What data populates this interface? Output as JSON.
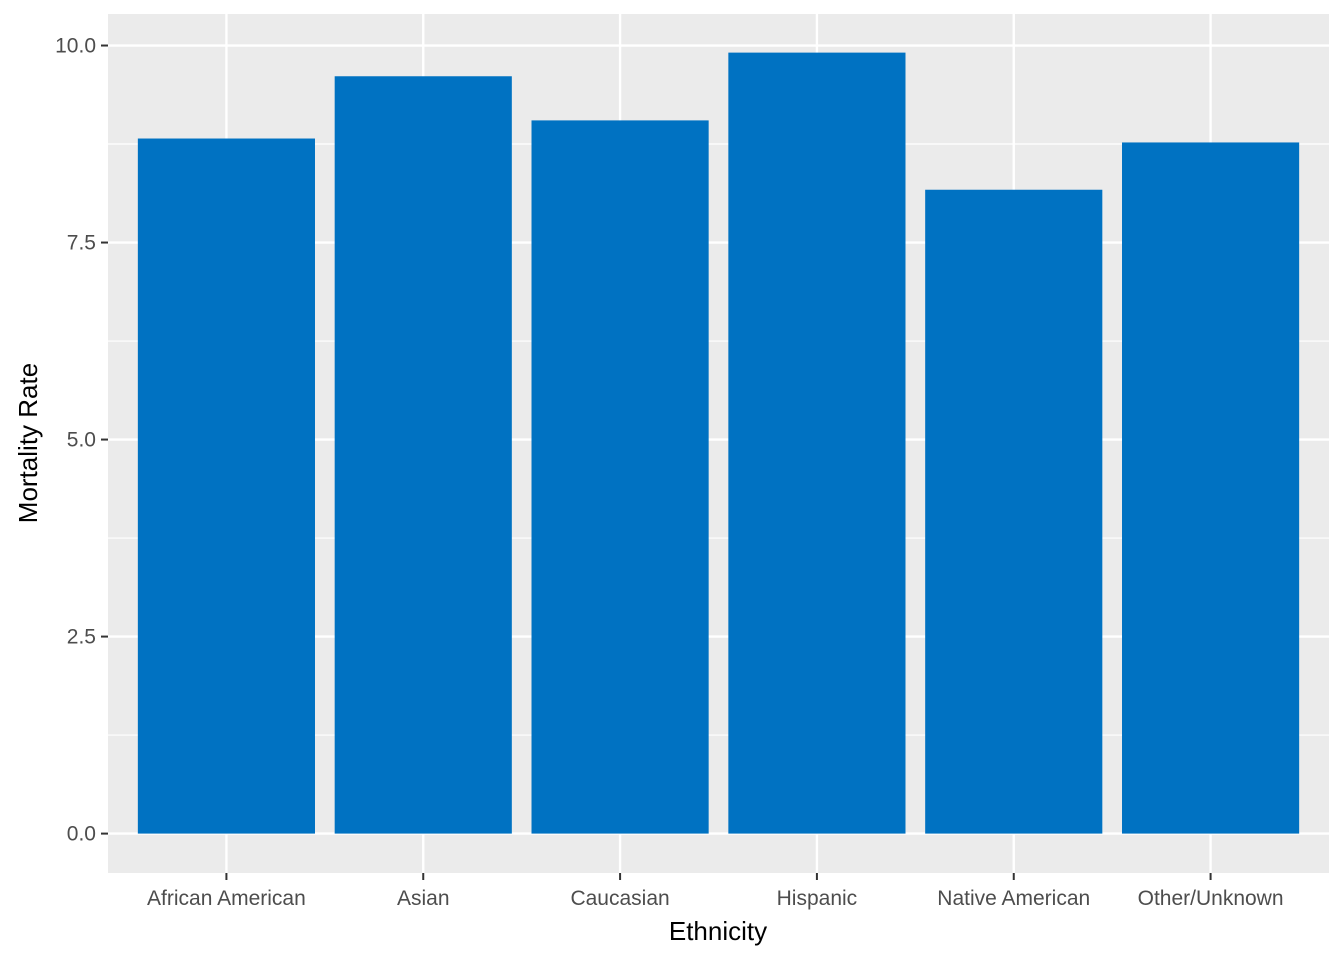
{
  "chart_data": {
    "type": "bar",
    "title": "",
    "xlabel": "Ethnicity",
    "ylabel": "Mortality Rate",
    "categories": [
      "African American",
      "Asian",
      "Caucasian",
      "Hispanic",
      "Native American",
      "Other/Unknown"
    ],
    "values": [
      8.82,
      9.61,
      9.05,
      9.91,
      8.17,
      8.77
    ],
    "ylim": [
      -0.5,
      10.4
    ],
    "yticks": [
      0.0,
      2.5,
      5.0,
      7.5,
      10.0
    ],
    "ytick_labels": [
      "0.0",
      "2.5",
      "5.0",
      "7.5",
      "10.0"
    ],
    "grid": true,
    "legend": "none",
    "colors": {
      "bar": "#0072C2",
      "panel_background": "#EBEBEB",
      "grid": "#FFFFFF",
      "tick": "#333333"
    }
  }
}
